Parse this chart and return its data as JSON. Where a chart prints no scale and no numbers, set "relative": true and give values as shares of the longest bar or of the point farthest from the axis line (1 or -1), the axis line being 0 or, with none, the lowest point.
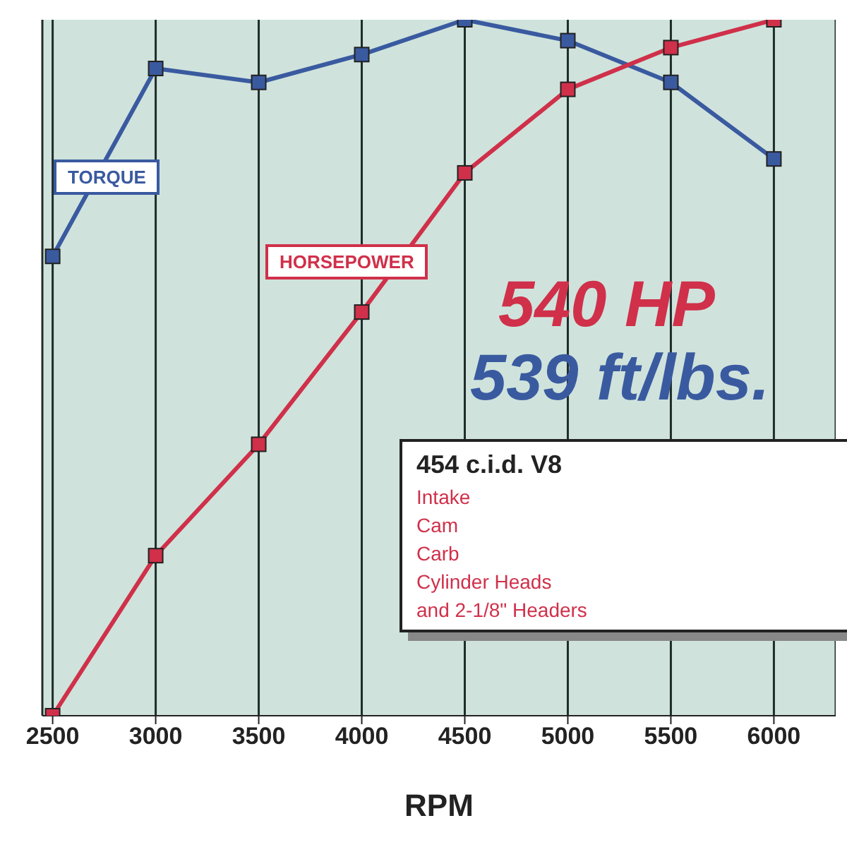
{
  "chart_data": {
    "type": "line",
    "xlabel": "RPM",
    "x": [
      2500,
      3000,
      3500,
      4000,
      4500,
      5000,
      5500,
      6000
    ],
    "xlim": [
      2450,
      6300
    ],
    "xticks": [
      2500,
      3000,
      3500,
      4000,
      4500,
      5000,
      5500,
      6000
    ],
    "relative": true,
    "grid": "x",
    "marker": "square",
    "line_style": "solid",
    "legend": false,
    "series": [
      {
        "name": "TORQUE",
        "color": "#3a5aa0",
        "values": [
          0.66,
          0.93,
          0.91,
          0.95,
          1.0,
          0.97,
          0.91,
          0.8
        ]
      },
      {
        "name": "HORSEPOWER",
        "color": "#d0304a",
        "values": [
          0,
          0.23,
          0.39,
          0.58,
          0.78,
          0.9,
          0.96,
          1.0
        ]
      }
    ],
    "annotations": [
      "540 HP",
      "539 ft/lbs.",
      "454 c.i.d. V8",
      "Intake",
      "Cam",
      "Carb",
      "Cylinder Heads",
      "and 2-1/8\" Headers"
    ]
  }
}
